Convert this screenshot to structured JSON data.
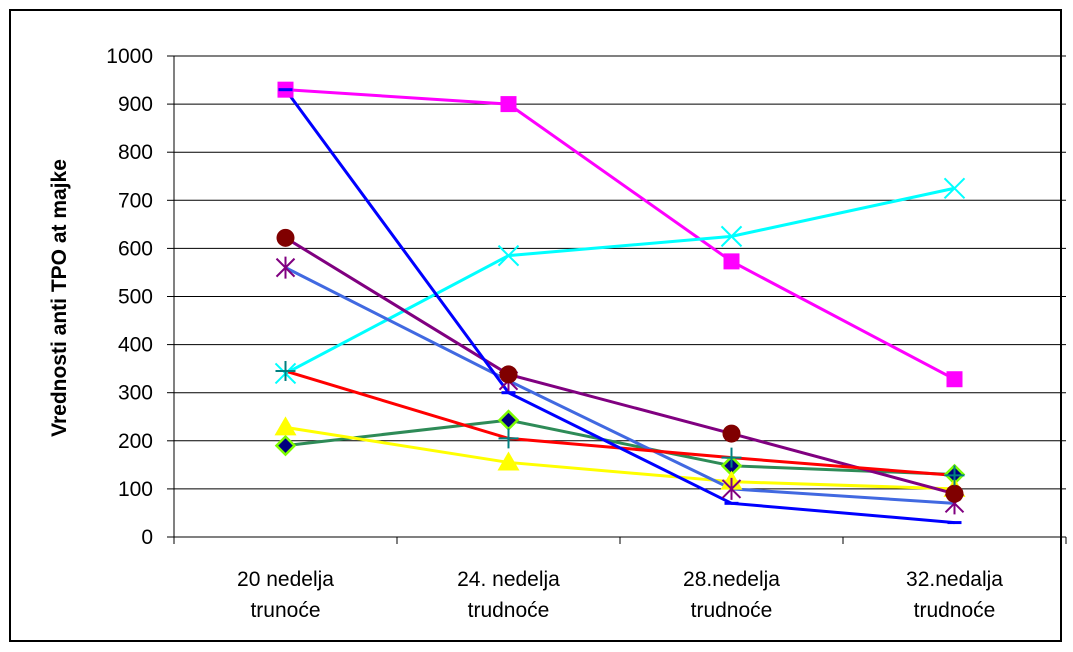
{
  "chart_data": {
    "type": "line",
    "title": "",
    "xlabel": "",
    "ylabel": "Vrednosti anti TPO at majke",
    "ylim": [
      0,
      1000
    ],
    "yticks": [
      0,
      100,
      200,
      300,
      400,
      500,
      600,
      700,
      800,
      900,
      1000
    ],
    "categories": [
      [
        "20 nedelja",
        "trunoće"
      ],
      [
        "24. nedelja",
        "trudnoće"
      ],
      [
        "28.nedelja",
        "trudnoće"
      ],
      [
        "32.nedalja",
        "trudnoće"
      ]
    ],
    "grid": true,
    "legend": "none",
    "series": [
      {
        "color": "#2E8B57",
        "marker": "diamond",
        "marker_color": "#000080",
        "marker_edge": "#7CFC00",
        "values": [
          190,
          243,
          148,
          130
        ]
      },
      {
        "color": "#FF00FF",
        "marker": "square",
        "marker_color": "#FF00FF",
        "values": [
          930,
          900,
          573,
          328
        ]
      },
      {
        "color": "#FFFF00",
        "marker": "triangle",
        "marker_color": "#FFFF00",
        "values": [
          228,
          155,
          115,
          100
        ]
      },
      {
        "color": "#00FFFF",
        "marker": "x",
        "marker_color": "#00FFFF",
        "values": [
          340,
          585,
          625,
          725
        ]
      },
      {
        "color": "#4169E1",
        "marker": "star",
        "marker_color": "#800080",
        "values": [
          560,
          325,
          100,
          70
        ]
      },
      {
        "color": "#800080",
        "marker": "circle",
        "marker_color": "#800000",
        "values": [
          622,
          338,
          215,
          90
        ]
      },
      {
        "color": "#FF0000",
        "marker": "plus",
        "marker_color": "#008080",
        "values": [
          345,
          205,
          165,
          128
        ]
      },
      {
        "color": "#0000FF",
        "marker": "dash",
        "marker_color": "#0000FF",
        "values": [
          930,
          300,
          70,
          30
        ]
      }
    ]
  }
}
